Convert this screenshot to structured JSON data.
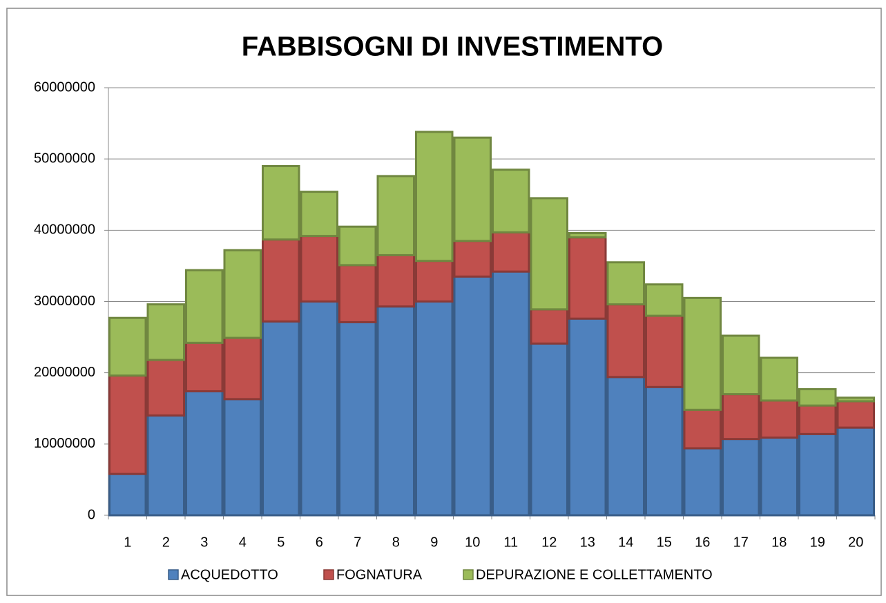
{
  "chart_data": {
    "type": "stacked_bar",
    "title": "FABBISOGNI DI INVESTIMENTO",
    "categories": [
      "1",
      "2",
      "3",
      "4",
      "5",
      "6",
      "7",
      "8",
      "9",
      "10",
      "11",
      "12",
      "13",
      "14",
      "15",
      "16",
      "17",
      "18",
      "19",
      "20"
    ],
    "series": [
      {
        "name": "ACQUEDOTTO",
        "color": "#4f81bd",
        "values": [
          5800000,
          14000000,
          17400000,
          16300000,
          27200000,
          30000000,
          27100000,
          29300000,
          30000000,
          33500000,
          34200000,
          24100000,
          27600000,
          19400000,
          18000000,
          9400000,
          10700000,
          10900000,
          11400000,
          12300000
        ]
      },
      {
        "name": "FOGNATURA",
        "color": "#c0504d",
        "values": [
          13800000,
          7800000,
          6800000,
          8600000,
          11500000,
          9200000,
          8000000,
          7200000,
          5700000,
          5000000,
          5500000,
          4800000,
          11400000,
          10200000,
          10000000,
          5400000,
          6300000,
          5200000,
          4000000,
          3700000
        ]
      },
      {
        "name": "DEPURAZIONE E COLLETTAMENTO",
        "color": "#9bbb59",
        "values": [
          8100000,
          7800000,
          10200000,
          12300000,
          10300000,
          6200000,
          5400000,
          11100000,
          18100000,
          14500000,
          8800000,
          15600000,
          600000,
          5900000,
          4400000,
          15700000,
          8200000,
          6000000,
          2300000,
          500000
        ]
      }
    ],
    "ylim": [
      0,
      60000000
    ],
    "yticks": [
      0,
      10000000,
      20000000,
      30000000,
      40000000,
      50000000,
      60000000
    ],
    "grid": true,
    "legend": "bottom"
  }
}
